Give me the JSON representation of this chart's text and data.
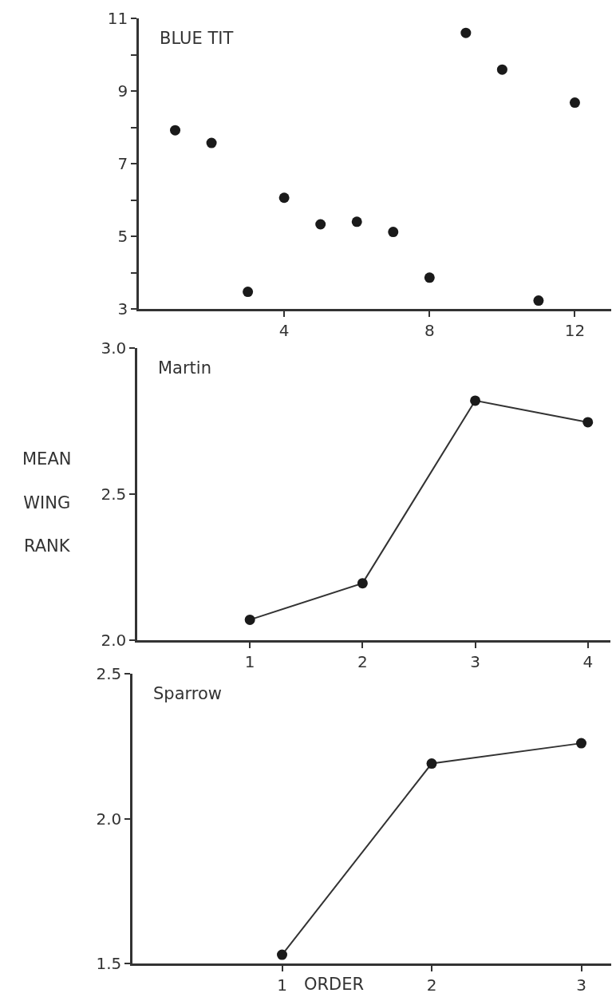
{
  "chart_data": [
    {
      "type": "scatter",
      "title": "BLUE TIT",
      "x": [
        1,
        2,
        3,
        4,
        5,
        6,
        7,
        8,
        9,
        10,
        11,
        12
      ],
      "series": [
        {
          "color": "#222222",
          "values": [
            7.92,
            7.57,
            3.47,
            6.06,
            5.33,
            5.4,
            5.12,
            3.86,
            10.6,
            9.59,
            3.23,
            8.68
          ]
        }
      ],
      "xlim": [
        0,
        13
      ],
      "xticks": [
        4,
        8,
        12
      ],
      "ylim": [
        3,
        11
      ],
      "yticks": [
        3,
        {
          "value": 4,
          "label": null
        },
        5,
        {
          "value": 6,
          "label": null
        },
        7,
        {
          "value": 8,
          "label": null
        },
        9,
        {
          "value": 10,
          "label": null
        },
        11
      ],
      "marker": "circle"
    },
    {
      "type": "line",
      "title": "Martin",
      "ylabel": "MEAN WING RANK",
      "x": [
        1,
        2,
        3,
        4
      ],
      "series": [
        {
          "color": "#333333",
          "values": [
            2.07,
            2.195,
            2.82,
            2.746
          ]
        }
      ],
      "xlim": [
        0,
        4.2
      ],
      "xticks": [
        1,
        2,
        3,
        4
      ],
      "ylim": [
        2.0,
        3.0
      ],
      "yticks": [
        {
          "value": 2,
          "label": "2.0"
        },
        2.5,
        {
          "value": 3,
          "label": "3.0"
        }
      ],
      "marker": "circle",
      "line_style": "solid"
    },
    {
      "type": "line",
      "title": "Sparrow",
      "xlabel": "ORDER",
      "x": [
        1,
        2,
        3
      ],
      "series": [
        {
          "color": "#333333",
          "values": [
            1.53,
            2.19,
            2.26
          ]
        }
      ],
      "xlim": [
        0,
        3.2
      ],
      "xticks": [
        1,
        2,
        3
      ],
      "ylim": [
        1.5,
        2.5
      ],
      "yticks": [
        1.5,
        {
          "value": 2,
          "label": "2.0"
        },
        2.5
      ],
      "marker": "circle",
      "line_style": "solid"
    }
  ]
}
